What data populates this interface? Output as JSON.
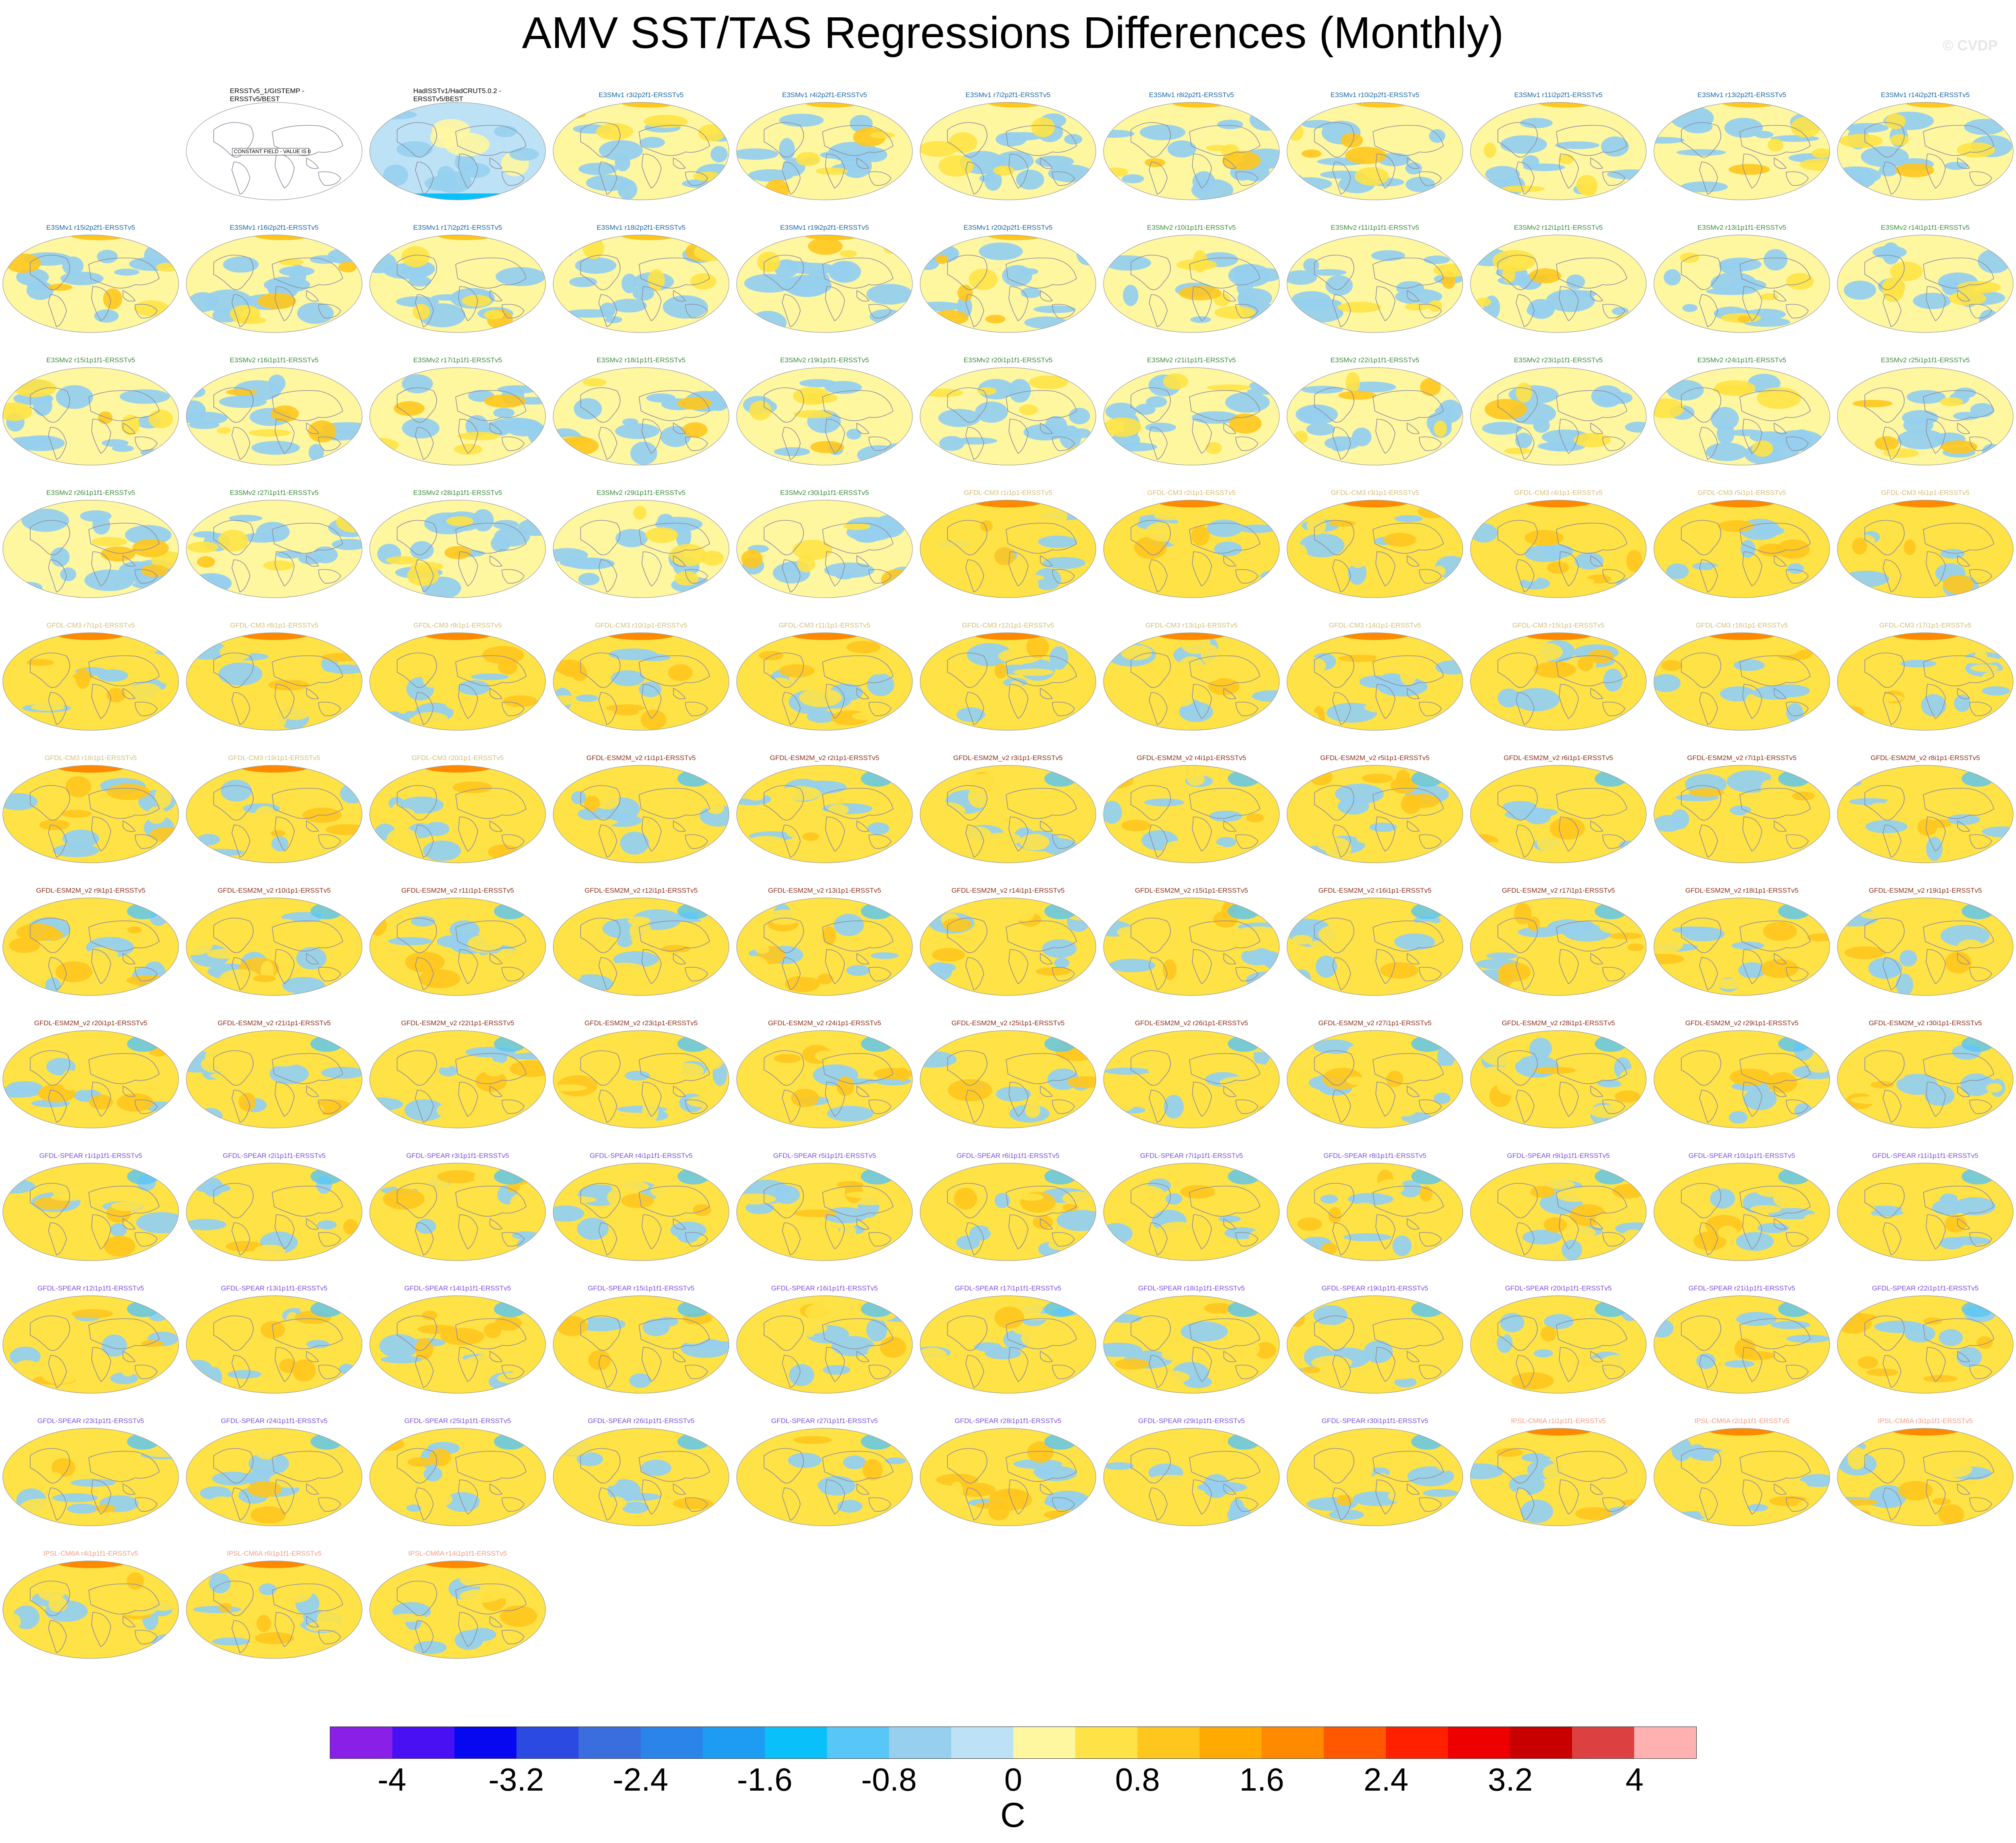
{
  "title": "AMV SST/TAS Regressions Differences (Monthly)",
  "credit": "© CVDP",
  "colorbar": {
    "unit": "C",
    "tick_labels": [
      "-4",
      "-3.2",
      "-2.4",
      "-1.6",
      "-0.8",
      "0",
      "0.8",
      "1.6",
      "2.4",
      "3.2",
      "4"
    ],
    "colors": [
      "#8a1fe8",
      "#4a10f4",
      "#0808f0",
      "#2a4ae2",
      "#3a6edf",
      "#2a84ea",
      "#1e9cf4",
      "#0ac0fa",
      "#58c6f6",
      "#96d0ee",
      "#bde2f6",
      "#fff7a0",
      "#ffe245",
      "#ffc61e",
      "#ffaa00",
      "#ff8a00",
      "#ff5800",
      "#ff2000",
      "#ee0000",
      "#c80000",
      "#dc4040",
      "#ffb0b0"
    ]
  },
  "group_colors": {
    "obs": "#000000",
    "E3SMv1": "#1a66a0",
    "E3SMv2": "#3c8a3c",
    "GFDL-CM3": "#d2be78",
    "GFDL-ESM2M": "#8a2e1c",
    "GFDL-SPEAR": "#7a4ee0",
    "IPSL-CM6A": "#f49c84"
  },
  "chart_data": {
    "type": "heatmap",
    "title": "AMV SST/TAS Regressions Differences (Monthly)",
    "colorbar_range": [
      -4,
      4
    ],
    "colorbar_interval": 0.4,
    "unit": "C",
    "panels": [
      {
        "title": "ERSSTv5_1/GISTEMP - ERSSTv5/BEST",
        "group": "obs",
        "annotation": "CONSTANT FIELD - VALUE IS 0"
      },
      {
        "title": "HadISSTv1/HadCRUT5.0.2 - ERSSTv5/BEST",
        "group": "obs"
      },
      {
        "title": "E3SMv1 r3i2p2f1-ERSSTv5",
        "group": "E3SMv1"
      },
      {
        "title": "E3SMv1 r4i2p2f1-ERSSTv5",
        "group": "E3SMv1"
      },
      {
        "title": "E3SMv1 r7i2p2f1-ERSSTv5",
        "group": "E3SMv1"
      },
      {
        "title": "E3SMv1 r8i2p2f1-ERSSTv5",
        "group": "E3SMv1"
      },
      {
        "title": "E3SMv1 r10i2p2f1-ERSSTv5",
        "group": "E3SMv1"
      },
      {
        "title": "E3SMv1 r11i2p2f1-ERSSTv5",
        "group": "E3SMv1"
      },
      {
        "title": "E3SMv1 r13i2p2f1-ERSSTv5",
        "group": "E3SMv1"
      },
      {
        "title": "E3SMv1 r14i2p2f1-ERSSTv5",
        "group": "E3SMv1"
      },
      {
        "title": "E3SMv1 r15i2p2f1-ERSSTv5",
        "group": "E3SMv1"
      },
      {
        "title": "E3SMv1 r16i2p2f1-ERSSTv5",
        "group": "E3SMv1"
      },
      {
        "title": "E3SMv1 r17i2p2f1-ERSSTv5",
        "group": "E3SMv1"
      },
      {
        "title": "E3SMv1 r18i2p2f1-ERSSTv5",
        "group": "E3SMv1"
      },
      {
        "title": "E3SMv1 r19i2p2f1-ERSSTv5",
        "group": "E3SMv1"
      },
      {
        "title": "E3SMv1 r20i2p2f1-ERSSTv5",
        "group": "E3SMv1"
      },
      {
        "title": "E3SMv2 r10i1p1f1-ERSSTv5",
        "group": "E3SMv2"
      },
      {
        "title": "E3SMv2 r11i1p1f1-ERSSTv5",
        "group": "E3SMv2"
      },
      {
        "title": "E3SMv2 r12i1p1f1-ERSSTv5",
        "group": "E3SMv2"
      },
      {
        "title": "E3SMv2 r13i1p1f1-ERSSTv5",
        "group": "E3SMv2"
      },
      {
        "title": "E3SMv2 r14i1p1f1-ERSSTv5",
        "group": "E3SMv2"
      },
      {
        "title": "E3SMv2 r15i1p1f1-ERSSTv5",
        "group": "E3SMv2"
      },
      {
        "title": "E3SMv2 r16i1p1f1-ERSSTv5",
        "group": "E3SMv2"
      },
      {
        "title": "E3SMv2 r17i1p1f1-ERSSTv5",
        "group": "E3SMv2"
      },
      {
        "title": "E3SMv2 r18i1p1f1-ERSSTv5",
        "group": "E3SMv2"
      },
      {
        "title": "E3SMv2 r19i1p1f1-ERSSTv5",
        "group": "E3SMv2"
      },
      {
        "title": "E3SMv2 r20i1p1f1-ERSSTv5",
        "group": "E3SMv2"
      },
      {
        "title": "E3SMv2 r21i1p1f1-ERSSTv5",
        "group": "E3SMv2"
      },
      {
        "title": "E3SMv2 r22i1p1f1-ERSSTv5",
        "group": "E3SMv2"
      },
      {
        "title": "E3SMv2 r23i1p1f1-ERSSTv5",
        "group": "E3SMv2"
      },
      {
        "title": "E3SMv2 r24i1p1f1-ERSSTv5",
        "group": "E3SMv2"
      },
      {
        "title": "E3SMv2 r25i1p1f1-ERSSTv5",
        "group": "E3SMv2"
      },
      {
        "title": "E3SMv2 r26i1p1f1-ERSSTv5",
        "group": "E3SMv2"
      },
      {
        "title": "E3SMv2 r27i1p1f1-ERSSTv5",
        "group": "E3SMv2"
      },
      {
        "title": "E3SMv2 r28i1p1f1-ERSSTv5",
        "group": "E3SMv2"
      },
      {
        "title": "E3SMv2 r29i1p1f1-ERSSTv5",
        "group": "E3SMv2"
      },
      {
        "title": "E3SMv2 r30i1p1f1-ERSSTv5",
        "group": "E3SMv2"
      },
      {
        "title": "GFDL-CM3 r1i1p1-ERSSTv5",
        "group": "GFDL-CM3"
      },
      {
        "title": "GFDL-CM3 r2i1p1-ERSSTv5",
        "group": "GFDL-CM3"
      },
      {
        "title": "GFDL-CM3 r3i1p1-ERSSTv5",
        "group": "GFDL-CM3"
      },
      {
        "title": "GFDL-CM3 r4i1p1-ERSSTv5",
        "group": "GFDL-CM3"
      },
      {
        "title": "GFDL-CM3 r5i1p1-ERSSTv5",
        "group": "GFDL-CM3"
      },
      {
        "title": "GFDL-CM3 r6i1p1-ERSSTv5",
        "group": "GFDL-CM3"
      },
      {
        "title": "GFDL-CM3 r7i1p1-ERSSTv5",
        "group": "GFDL-CM3"
      },
      {
        "title": "GFDL-CM3 r8i1p1-ERSSTv5",
        "group": "GFDL-CM3"
      },
      {
        "title": "GFDL-CM3 r9i1p1-ERSSTv5",
        "group": "GFDL-CM3"
      },
      {
        "title": "GFDL-CM3 r10i1p1-ERSSTv5",
        "group": "GFDL-CM3"
      },
      {
        "title": "GFDL-CM3 r11i1p1-ERSSTv5",
        "group": "GFDL-CM3"
      },
      {
        "title": "GFDL-CM3 r12i1p1-ERSSTv5",
        "group": "GFDL-CM3"
      },
      {
        "title": "GFDL-CM3 r13i1p1-ERSSTv5",
        "group": "GFDL-CM3"
      },
      {
        "title": "GFDL-CM3 r14i1p1-ERSSTv5",
        "group": "GFDL-CM3"
      },
      {
        "title": "GFDL-CM3 r15i1p1-ERSSTv5",
        "group": "GFDL-CM3"
      },
      {
        "title": "GFDL-CM3 r16i1p1-ERSSTv5",
        "group": "GFDL-CM3"
      },
      {
        "title": "GFDL-CM3 r17i1p1-ERSSTv5",
        "group": "GFDL-CM3"
      },
      {
        "title": "GFDL-CM3 r18i1p1-ERSSTv5",
        "group": "GFDL-CM3"
      },
      {
        "title": "GFDL-CM3 r19i1p1-ERSSTv5",
        "group": "GFDL-CM3"
      },
      {
        "title": "GFDL-CM3 r20i1p1-ERSSTv5",
        "group": "GFDL-CM3"
      },
      {
        "title": "GFDL-ESM2M_v2 r1i1p1-ERSSTv5",
        "group": "GFDL-ESM2M"
      },
      {
        "title": "GFDL-ESM2M_v2 r2i1p1-ERSSTv5",
        "group": "GFDL-ESM2M"
      },
      {
        "title": "GFDL-ESM2M_v2 r3i1p1-ERSSTv5",
        "group": "GFDL-ESM2M"
      },
      {
        "title": "GFDL-ESM2M_v2 r4i1p1-ERSSTv5",
        "group": "GFDL-ESM2M"
      },
      {
        "title": "GFDL-ESM2M_v2 r5i1p1-ERSSTv5",
        "group": "GFDL-ESM2M"
      },
      {
        "title": "GFDL-ESM2M_v2 r6i1p1-ERSSTv5",
        "group": "GFDL-ESM2M"
      },
      {
        "title": "GFDL-ESM2M_v2 r7i1p1-ERSSTv5",
        "group": "GFDL-ESM2M"
      },
      {
        "title": "GFDL-ESM2M_v2 r8i1p1-ERSSTv5",
        "group": "GFDL-ESM2M"
      },
      {
        "title": "GFDL-ESM2M_v2 r9i1p1-ERSSTv5",
        "group": "GFDL-ESM2M"
      },
      {
        "title": "GFDL-ESM2M_v2 r10i1p1-ERSSTv5",
        "group": "GFDL-ESM2M"
      },
      {
        "title": "GFDL-ESM2M_v2 r11i1p1-ERSSTv5",
        "group": "GFDL-ESM2M"
      },
      {
        "title": "GFDL-ESM2M_v2 r12i1p1-ERSSTv5",
        "group": "GFDL-ESM2M"
      },
      {
        "title": "GFDL-ESM2M_v2 r13i1p1-ERSSTv5",
        "group": "GFDL-ESM2M"
      },
      {
        "title": "GFDL-ESM2M_v2 r14i1p1-ERSSTv5",
        "group": "GFDL-ESM2M"
      },
      {
        "title": "GFDL-ESM2M_v2 r15i1p1-ERSSTv5",
        "group": "GFDL-ESM2M"
      },
      {
        "title": "GFDL-ESM2M_v2 r16i1p1-ERSSTv5",
        "group": "GFDL-ESM2M"
      },
      {
        "title": "GFDL-ESM2M_v2 r17i1p1-ERSSTv5",
        "group": "GFDL-ESM2M"
      },
      {
        "title": "GFDL-ESM2M_v2 r18i1p1-ERSSTv5",
        "group": "GFDL-ESM2M"
      },
      {
        "title": "GFDL-ESM2M_v2 r19i1p1-ERSSTv5",
        "group": "GFDL-ESM2M"
      },
      {
        "title": "GFDL-ESM2M_v2 r20i1p1-ERSSTv5",
        "group": "GFDL-ESM2M"
      },
      {
        "title": "GFDL-ESM2M_v2 r21i1p1-ERSSTv5",
        "group": "GFDL-ESM2M"
      },
      {
        "title": "GFDL-ESM2M_v2 r22i1p1-ERSSTv5",
        "group": "GFDL-ESM2M"
      },
      {
        "title": "GFDL-ESM2M_v2 r23i1p1-ERSSTv5",
        "group": "GFDL-ESM2M"
      },
      {
        "title": "GFDL-ESM2M_v2 r24i1p1-ERSSTv5",
        "group": "GFDL-ESM2M"
      },
      {
        "title": "GFDL-ESM2M_v2 r25i1p1-ERSSTv5",
        "group": "GFDL-ESM2M"
      },
      {
        "title": "GFDL-ESM2M_v2 r26i1p1-ERSSTv5",
        "group": "GFDL-ESM2M"
      },
      {
        "title": "GFDL-ESM2M_v2 r27i1p1-ERSSTv5",
        "group": "GFDL-ESM2M"
      },
      {
        "title": "GFDL-ESM2M_v2 r28i1p1-ERSSTv5",
        "group": "GFDL-ESM2M"
      },
      {
        "title": "GFDL-ESM2M_v2 r29i1p1-ERSSTv5",
        "group": "GFDL-ESM2M"
      },
      {
        "title": "GFDL-ESM2M_v2 r30i1p1-ERSSTv5",
        "group": "GFDL-ESM2M"
      },
      {
        "title": "GFDL-SPEAR r1i1p1f1-ERSSTv5",
        "group": "GFDL-SPEAR"
      },
      {
        "title": "GFDL-SPEAR r2i1p1f1-ERSSTv5",
        "group": "GFDL-SPEAR"
      },
      {
        "title": "GFDL-SPEAR r3i1p1f1-ERSSTv5",
        "group": "GFDL-SPEAR"
      },
      {
        "title": "GFDL-SPEAR r4i1p1f1-ERSSTv5",
        "group": "GFDL-SPEAR"
      },
      {
        "title": "GFDL-SPEAR r5i1p1f1-ERSSTv5",
        "group": "GFDL-SPEAR"
      },
      {
        "title": "GFDL-SPEAR r6i1p1f1-ERSSTv5",
        "group": "GFDL-SPEAR"
      },
      {
        "title": "GFDL-SPEAR r7i1p1f1-ERSSTv5",
        "group": "GFDL-SPEAR"
      },
      {
        "title": "GFDL-SPEAR r8i1p1f1-ERSSTv5",
        "group": "GFDL-SPEAR"
      },
      {
        "title": "GFDL-SPEAR r9i1p1f1-ERSSTv5",
        "group": "GFDL-SPEAR"
      },
      {
        "title": "GFDL-SPEAR r10i1p1f1-ERSSTv5",
        "group": "GFDL-SPEAR"
      },
      {
        "title": "GFDL-SPEAR r11i1p1f1-ERSSTv5",
        "group": "GFDL-SPEAR"
      },
      {
        "title": "GFDL-SPEAR r12i1p1f1-ERSSTv5",
        "group": "GFDL-SPEAR"
      },
      {
        "title": "GFDL-SPEAR r13i1p1f1-ERSSTv5",
        "group": "GFDL-SPEAR"
      },
      {
        "title": "GFDL-SPEAR r14i1p1f1-ERSSTv5",
        "group": "GFDL-SPEAR"
      },
      {
        "title": "GFDL-SPEAR r15i1p1f1-ERSSTv5",
        "group": "GFDL-SPEAR"
      },
      {
        "title": "GFDL-SPEAR r16i1p1f1-ERSSTv5",
        "group": "GFDL-SPEAR"
      },
      {
        "title": "GFDL-SPEAR r17i1p1f1-ERSSTv5",
        "group": "GFDL-SPEAR"
      },
      {
        "title": "GFDL-SPEAR r18i1p1f1-ERSSTv5",
        "group": "GFDL-SPEAR"
      },
      {
        "title": "GFDL-SPEAR r19i1p1f1-ERSSTv5",
        "group": "GFDL-SPEAR"
      },
      {
        "title": "GFDL-SPEAR r20i1p1f1-ERSSTv5",
        "group": "GFDL-SPEAR"
      },
      {
        "title": "GFDL-SPEAR r21i1p1f1-ERSSTv5",
        "group": "GFDL-SPEAR"
      },
      {
        "title": "GFDL-SPEAR r22i1p1f1-ERSSTv5",
        "group": "GFDL-SPEAR"
      },
      {
        "title": "GFDL-SPEAR r23i1p1f1-ERSSTv5",
        "group": "GFDL-SPEAR"
      },
      {
        "title": "GFDL-SPEAR r24i1p1f1-ERSSTv5",
        "group": "GFDL-SPEAR"
      },
      {
        "title": "GFDL-SPEAR r25i1p1f1-ERSSTv5",
        "group": "GFDL-SPEAR"
      },
      {
        "title": "GFDL-SPEAR r26i1p1f1-ERSSTv5",
        "group": "GFDL-SPEAR"
      },
      {
        "title": "GFDL-SPEAR r27i1p1f1-ERSSTv5",
        "group": "GFDL-SPEAR"
      },
      {
        "title": "GFDL-SPEAR r28i1p1f1-ERSSTv5",
        "group": "GFDL-SPEAR"
      },
      {
        "title": "GFDL-SPEAR r29i1p1f1-ERSSTv5",
        "group": "GFDL-SPEAR"
      },
      {
        "title": "GFDL-SPEAR r30i1p1f1-ERSSTv5",
        "group": "GFDL-SPEAR"
      },
      {
        "title": "IPSL-CM6A r1i1p1f1-ERSSTv5",
        "group": "IPSL-CM6A"
      },
      {
        "title": "IPSL-CM6A r2i1p1f1-ERSSTv5",
        "group": "IPSL-CM6A"
      },
      {
        "title": "IPSL-CM6A r3i1p1f1-ERSSTv5",
        "group": "IPSL-CM6A"
      },
      {
        "title": "IPSL-CM6A r4i1p1f1-ERSSTv5",
        "group": "IPSL-CM6A"
      },
      {
        "title": "IPSL-CM6A r6i1p1f1-ERSSTv5",
        "group": "IPSL-CM6A"
      },
      {
        "title": "IPSL-CM6A r14i1p1f1-ERSSTv5",
        "group": "IPSL-CM6A"
      }
    ]
  }
}
